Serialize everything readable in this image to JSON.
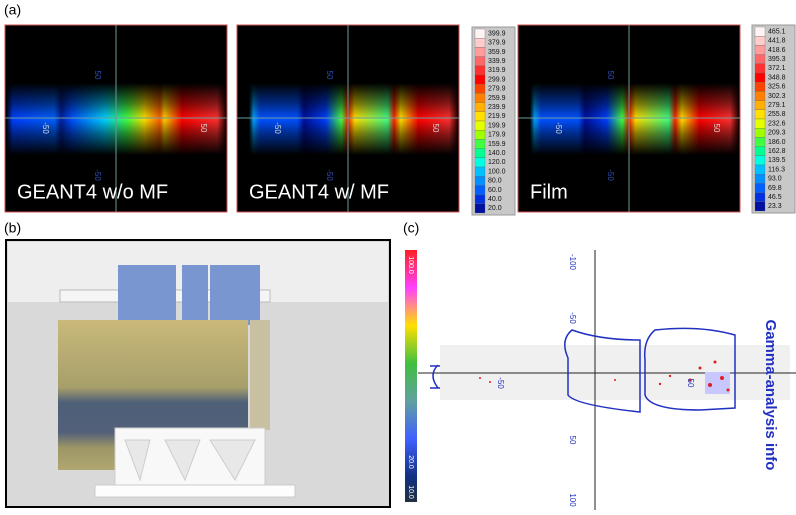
{
  "panel_labels": [
    "(a)",
    "(b)",
    "(c)"
  ],
  "panel_a": {
    "images": [
      {
        "caption": "GEANT4 w/o MF",
        "axis_labels": [
          "50",
          "-50",
          "-50",
          "50"
        ]
      },
      {
        "caption": "GEANT4 w/ MF",
        "axis_labels": [
          "50",
          "-50",
          "-50",
          "50"
        ]
      },
      {
        "caption": "Film",
        "axis_labels": [
          "50",
          "-50",
          "-50",
          "50"
        ]
      }
    ],
    "colorbars": [
      [
        "399.9",
        "379.9",
        "359.9",
        "339.9",
        "319.9",
        "299.9",
        "279.9",
        "259.9",
        "239.9",
        "219.9",
        "199.9",
        "179.9",
        "159.9",
        "140.0",
        "120.0",
        "100.0",
        "80.0",
        "60.0",
        "40.0",
        "20.0"
      ],
      [
        "465.1",
        "441.8",
        "418.6",
        "395.3",
        "372.1",
        "348.8",
        "325.6",
        "302.3",
        "279.1",
        "255.8",
        "232.6",
        "209.3",
        "186.0",
        "162.8",
        "139.5",
        "116.3",
        "93.0",
        "69.8",
        "46.5",
        "23.3"
      ]
    ],
    "palette": [
      "#fff4f4",
      "#ffcccc",
      "#ff9c9c",
      "#ff6868",
      "#ff3030",
      "#ff0000",
      "#ff4400",
      "#ff8000",
      "#ffb000",
      "#ffe000",
      "#e4ff00",
      "#a0ff00",
      "#40ff40",
      "#00ff90",
      "#00ffe0",
      "#00c0ff",
      "#0090ff",
      "#0060ff",
      "#0030e0",
      "#0010a0"
    ]
  },
  "panel_c": {
    "title": "Gamma-analysis info",
    "vertical_axis_labels": [
      "-100",
      "-50",
      "50",
      "100"
    ],
    "horizontal_axis_labels": [
      "-50",
      "50"
    ],
    "colorbar_labels": [
      "100.0",
      "20.0",
      "10.0"
    ]
  }
}
